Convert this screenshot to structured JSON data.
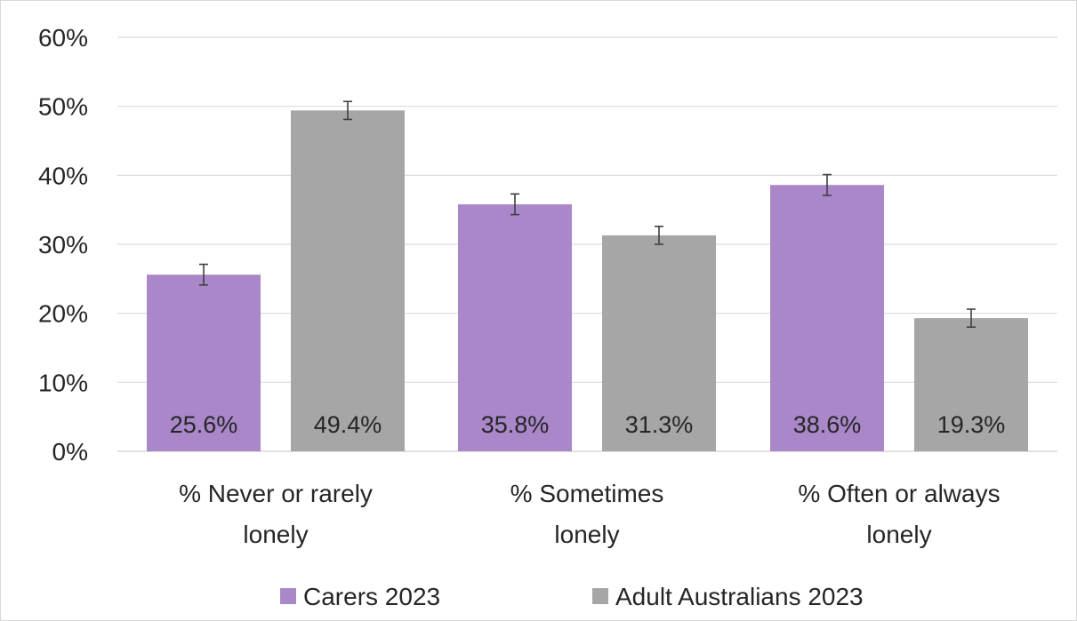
{
  "chart_data": {
    "type": "bar",
    "categories": [
      [
        "% Never or rarely",
        "lonely"
      ],
      [
        "% Sometimes",
        "lonely"
      ],
      [
        "% Often or always",
        "lonely"
      ]
    ],
    "series": [
      {
        "name": "Carers 2023",
        "color": "#a987c9",
        "values": [
          25.6,
          35.8,
          38.6
        ],
        "labels": [
          "25.6%",
          "35.8%",
          "38.6%"
        ],
        "error": [
          1.5,
          1.5,
          1.5
        ]
      },
      {
        "name": "Adult Australians 2023",
        "color": "#a6a6a6",
        "values": [
          49.4,
          31.3,
          19.3
        ],
        "labels": [
          "49.4%",
          "31.3%",
          "19.3%"
        ],
        "error": [
          1.3,
          1.3,
          1.3
        ]
      }
    ],
    "ylim": [
      0,
      60
    ],
    "yticks": [
      0,
      10,
      20,
      30,
      40,
      50,
      60
    ],
    "ytick_labels": [
      "0%",
      "10%",
      "20%",
      "30%",
      "40%",
      "50%",
      "60%"
    ],
    "grid": true,
    "legend_position": "bottom",
    "grid_color": "#d9d9d9",
    "text_color": "#262626"
  }
}
